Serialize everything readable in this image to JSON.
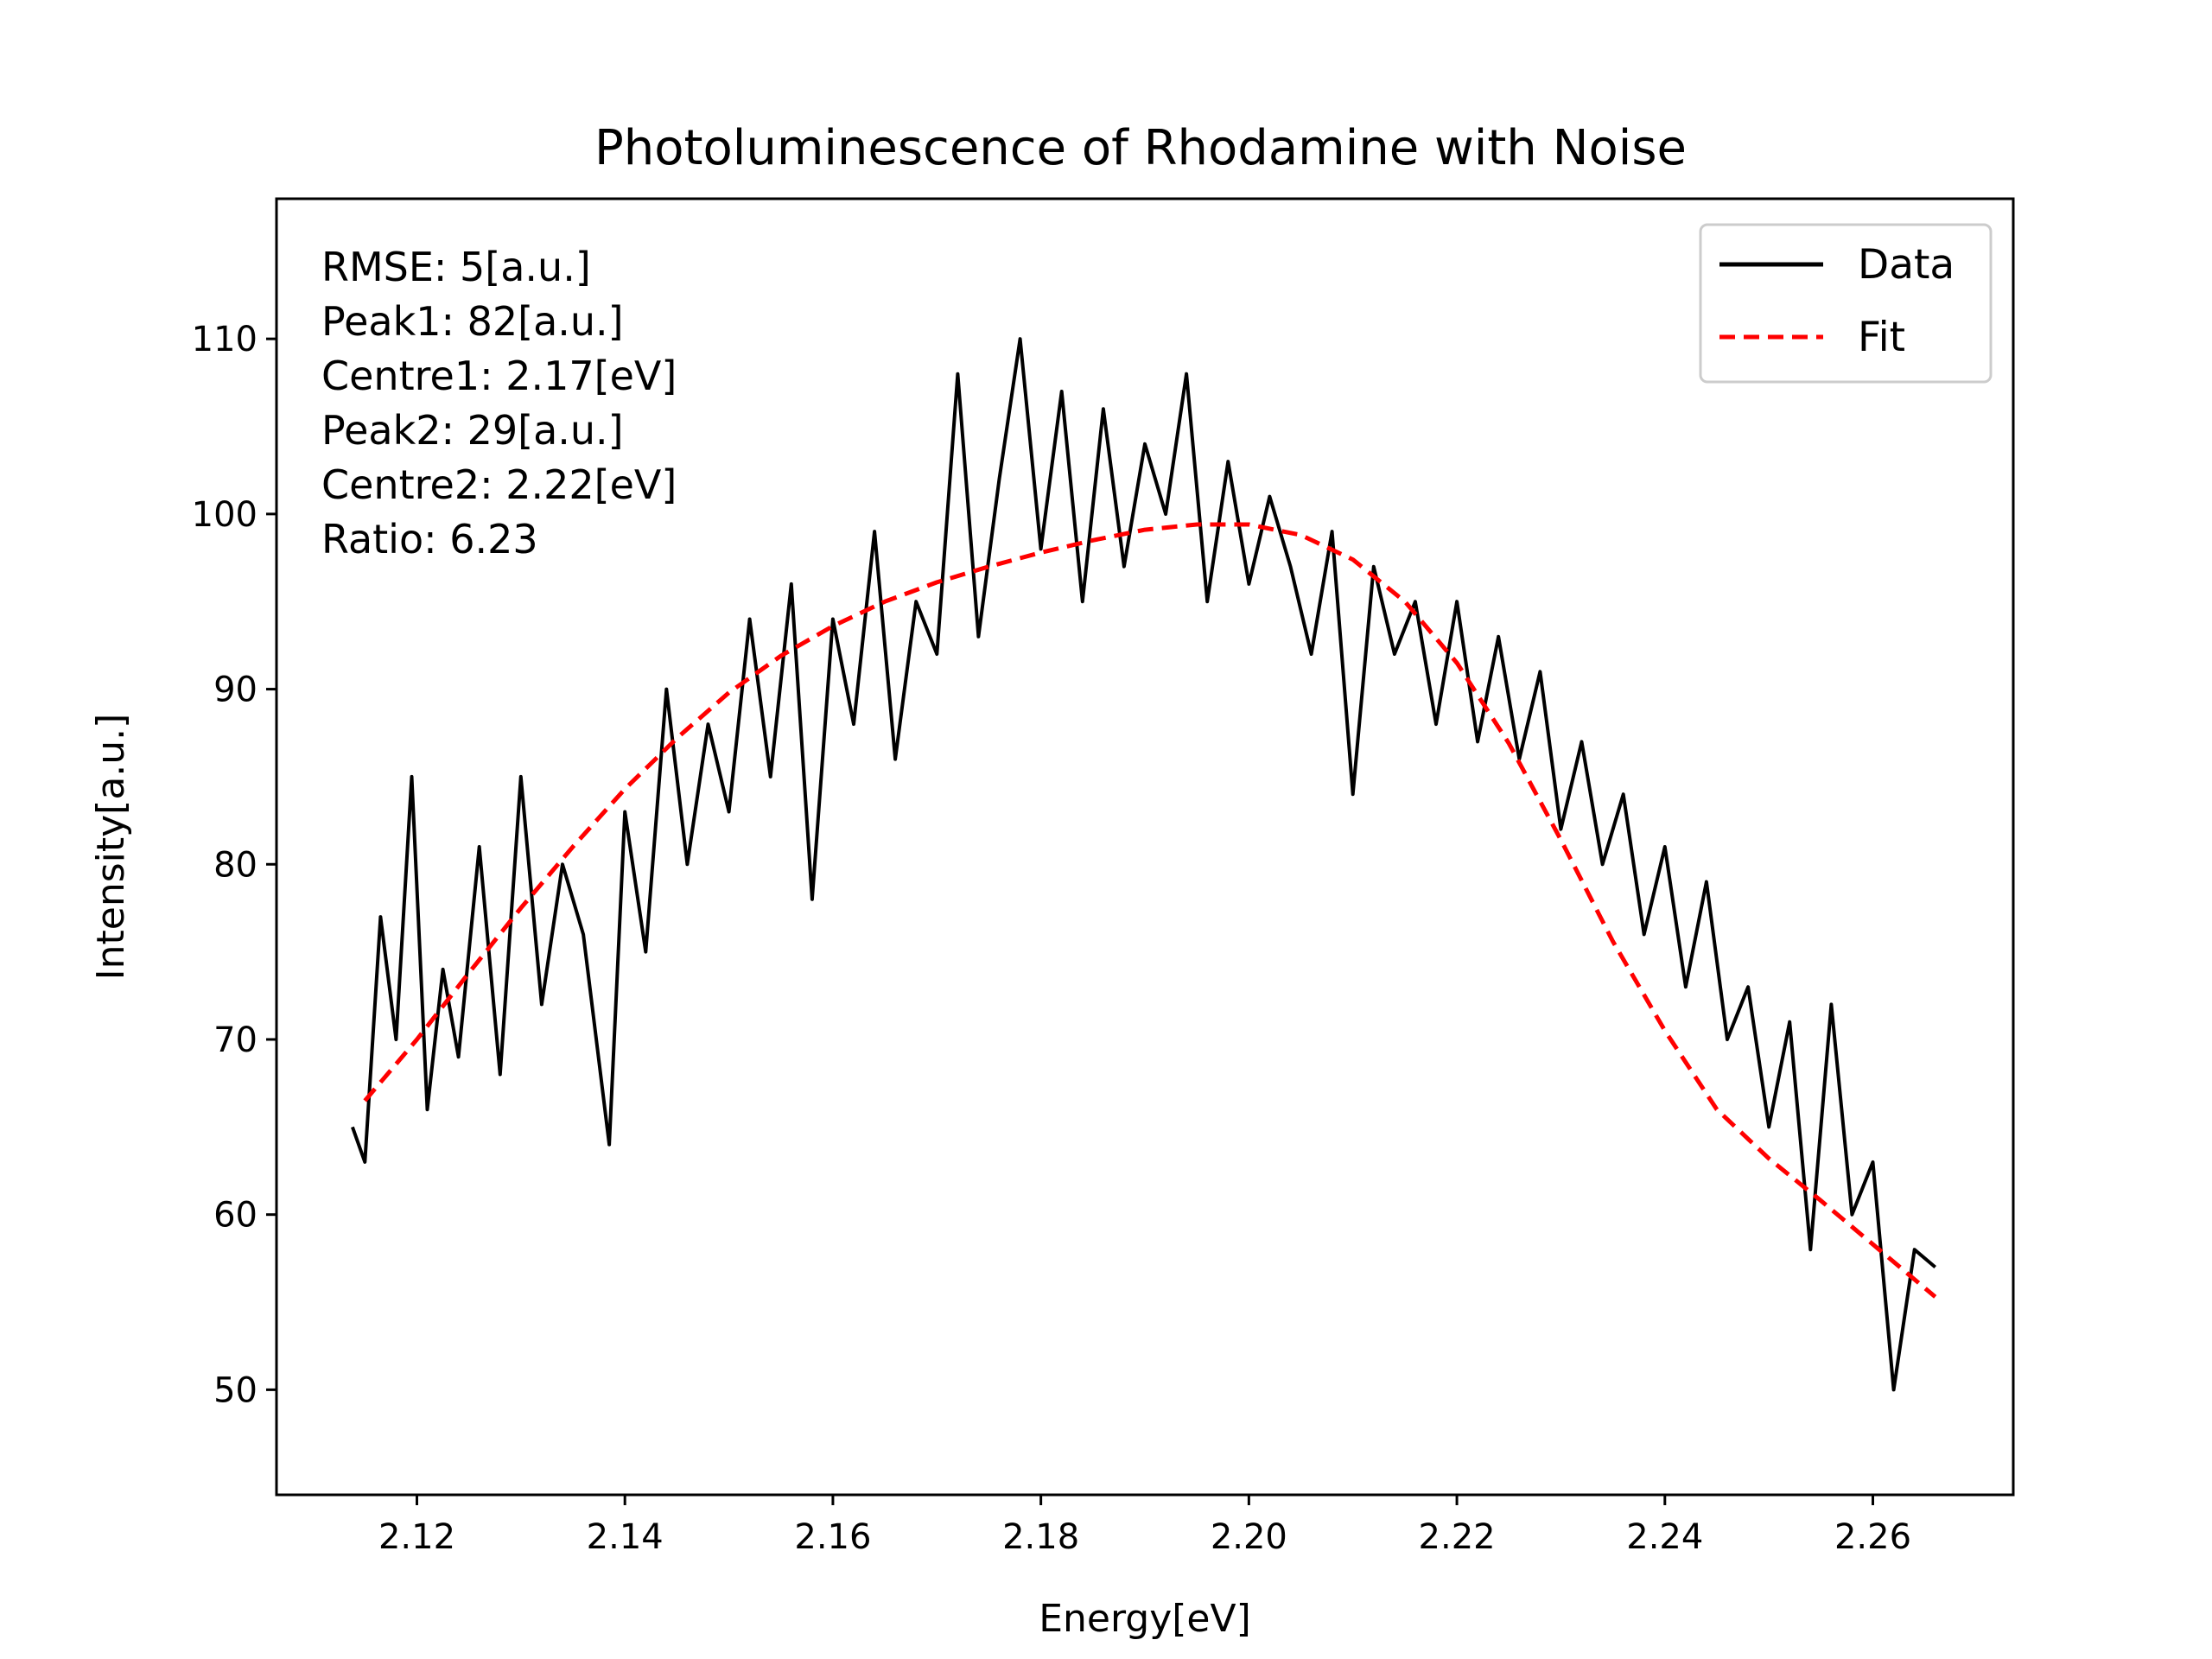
{
  "chart_data": {
    "type": "line",
    "title": "Photoluminescence of Rhodamine with Noise",
    "xlabel": "Energy[eV]",
    "ylabel": "Intensity[a.u.]",
    "xlim": [
      2.1065,
      2.2735
    ],
    "ylim": [
      44,
      118
    ],
    "xticks": [
      2.12,
      2.14,
      2.16,
      2.18,
      2.2,
      2.22,
      2.24,
      2.26
    ],
    "xtick_labels": [
      "2.12",
      "2.14",
      "2.16",
      "2.18",
      "2.20",
      "2.22",
      "2.24",
      "2.26"
    ],
    "yticks": [
      50,
      60,
      70,
      80,
      90,
      100,
      110
    ],
    "ytick_labels": [
      "50",
      "60",
      "70",
      "80",
      "90",
      "100",
      "110"
    ],
    "grid": false,
    "legend_position": "top-right",
    "legend": [
      "Data",
      "Fit"
    ],
    "annotations": [
      "RMSE: 5[a.u.]",
      "Peak1: 82[a.u.]",
      "Centre1: 2.17[eV]",
      "Peak2: 29[a.u.]",
      "Centre2: 2.22[eV]",
      "Ratio: 6.23"
    ],
    "series": [
      {
        "name": "Data",
        "color": "#000000",
        "style": "solid",
        "x": [
          2.1138,
          2.115,
          2.1165,
          2.118,
          2.1195,
          2.121,
          2.1225,
          2.124,
          2.126,
          2.128,
          2.13,
          2.132,
          2.134,
          2.136,
          2.1385,
          2.14,
          2.142,
          2.144,
          2.146,
          2.148,
          2.15,
          2.152,
          2.154,
          2.156,
          2.158,
          2.16,
          2.162,
          2.164,
          2.166,
          2.168,
          2.17,
          2.172,
          2.174,
          2.176,
          2.178,
          2.18,
          2.182,
          2.184,
          2.186,
          2.188,
          2.19,
          2.192,
          2.194,
          2.196,
          2.198,
          2.2,
          2.202,
          2.204,
          2.206,
          2.208,
          2.21,
          2.212,
          2.214,
          2.216,
          2.218,
          2.22,
          2.222,
          2.224,
          2.226,
          2.228,
          2.23,
          2.232,
          2.234,
          2.236,
          2.238,
          2.24,
          2.242,
          2.244,
          2.246,
          2.248,
          2.25,
          2.252,
          2.254,
          2.256,
          2.258,
          2.26,
          2.262,
          2.264,
          2.266
        ],
        "y": [
          65,
          63,
          77,
          70,
          85,
          66,
          74,
          69,
          81,
          68,
          85,
          72,
          80,
          76,
          64,
          83,
          75,
          90,
          80,
          88,
          83,
          94,
          85,
          96,
          78,
          94,
          88,
          99,
          86,
          95,
          92,
          108,
          93,
          102,
          110,
          98,
          107,
          95,
          106,
          97,
          104,
          100,
          108,
          95,
          103,
          96,
          101,
          97,
          92,
          99,
          84,
          97,
          92,
          95,
          88,
          95,
          87,
          93,
          86,
          91,
          82,
          87,
          80,
          84,
          76,
          81,
          73,
          79,
          70,
          73,
          65,
          71,
          58,
          72,
          60,
          63,
          50,
          58,
          57
        ]
      },
      {
        "name": "Fit",
        "color": "#ff0000",
        "style": "dashed",
        "x": [
          2.115,
          2.12,
          2.125,
          2.13,
          2.135,
          2.14,
          2.145,
          2.15,
          2.155,
          2.16,
          2.165,
          2.17,
          2.175,
          2.18,
          2.185,
          2.19,
          2.195,
          2.2,
          2.205,
          2.21,
          2.215,
          2.22,
          2.225,
          2.23,
          2.235,
          2.24,
          2.245,
          2.25,
          2.255,
          2.26,
          2.266
        ],
        "y": [
          66.5,
          70.0,
          73.8,
          77.5,
          81.0,
          84.3,
          87.2,
          89.8,
          91.9,
          93.6,
          95.0,
          96.1,
          97.0,
          97.8,
          98.5,
          99.1,
          99.4,
          99.4,
          98.8,
          97.4,
          95.0,
          91.5,
          86.9,
          81.4,
          75.6,
          70.5,
          66.0,
          63.2,
          60.8,
          58.3,
          55.3
        ]
      }
    ]
  }
}
